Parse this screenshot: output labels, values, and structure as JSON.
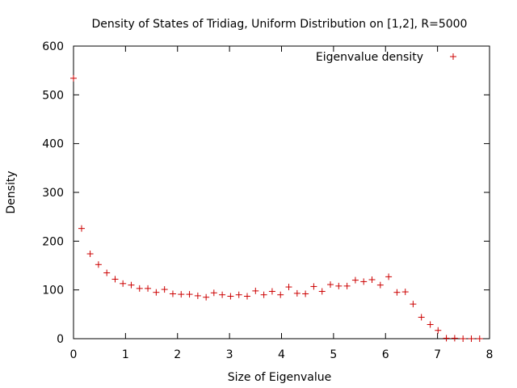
{
  "chart_data": {
    "type": "scatter",
    "title": "Density of States of Tridiag, Uniform Distribution on [1,2], R=5000",
    "xlabel": "Size of Eigenvalue",
    "ylabel": "Density",
    "xlim": [
      0,
      8
    ],
    "ylim": [
      0,
      600
    ],
    "xticks": [
      "0",
      "1",
      "2",
      "3",
      "4",
      "5",
      "6",
      "7",
      "8"
    ],
    "yticks": [
      "0",
      "100",
      "200",
      "300",
      "400",
      "500",
      "600"
    ],
    "grid": false,
    "legend_position": "top-right",
    "marker": "plus",
    "series": [
      {
        "name": "Eigenvalue density",
        "color": "#cc0000",
        "points": [
          [
            0.0,
            534
          ],
          [
            0.155,
            226
          ],
          [
            0.32,
            174
          ],
          [
            0.48,
            152
          ],
          [
            0.64,
            135
          ],
          [
            0.8,
            122
          ],
          [
            0.95,
            113
          ],
          [
            1.11,
            110
          ],
          [
            1.27,
            103
          ],
          [
            1.43,
            103
          ],
          [
            1.59,
            95
          ],
          [
            1.75,
            101
          ],
          [
            1.91,
            92
          ],
          [
            2.07,
            91
          ],
          [
            2.23,
            91
          ],
          [
            2.39,
            88
          ],
          [
            2.55,
            85
          ],
          [
            2.7,
            94
          ],
          [
            2.86,
            90
          ],
          [
            3.02,
            87
          ],
          [
            3.18,
            90
          ],
          [
            3.34,
            87
          ],
          [
            3.5,
            98
          ],
          [
            3.66,
            90
          ],
          [
            3.82,
            97
          ],
          [
            3.98,
            90
          ],
          [
            4.14,
            106
          ],
          [
            4.3,
            93
          ],
          [
            4.46,
            92
          ],
          [
            4.62,
            107
          ],
          [
            4.78,
            97
          ],
          [
            4.94,
            111
          ],
          [
            5.1,
            108
          ],
          [
            5.26,
            108
          ],
          [
            5.42,
            120
          ],
          [
            5.58,
            117
          ],
          [
            5.74,
            121
          ],
          [
            5.9,
            110
          ],
          [
            6.06,
            127
          ],
          [
            6.22,
            95
          ],
          [
            6.38,
            96
          ],
          [
            6.53,
            71
          ],
          [
            6.69,
            44
          ],
          [
            6.86,
            29
          ],
          [
            7.01,
            17
          ],
          [
            7.17,
            1
          ],
          [
            7.33,
            1
          ],
          [
            7.49,
            0
          ],
          [
            7.65,
            0
          ],
          [
            7.81,
            0
          ]
        ]
      }
    ]
  }
}
